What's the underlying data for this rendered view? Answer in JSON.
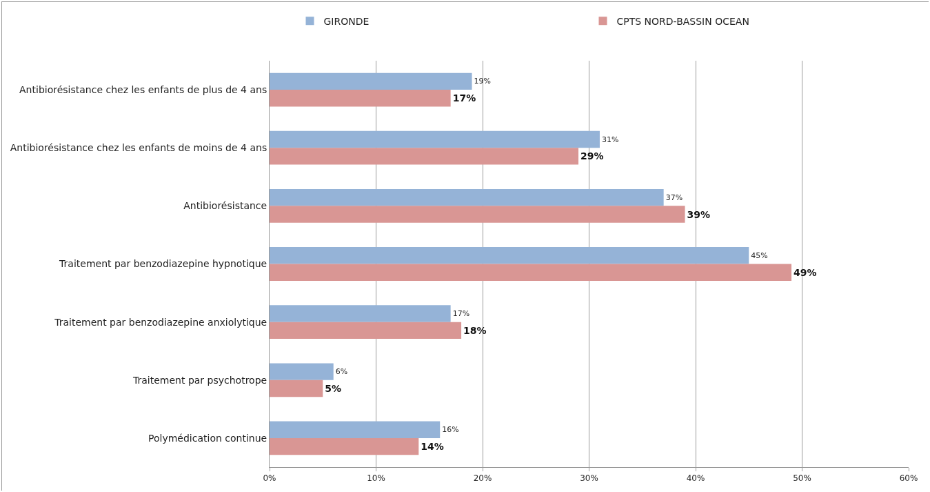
{
  "chart_data": {
    "type": "bar",
    "orientation": "horizontal",
    "categories": [
      "Antibiorésistance chez les enfants de plus de 4 ans",
      "Antibiorésistance chez les enfants de moins de 4 ans",
      "Antibiorésistance",
      "Traitement par benzodiazepine hypnotique",
      "Traitement par benzodiazepine anxiolytique",
      "Traitement par psychotrope",
      "Polymédication continue"
    ],
    "series": [
      {
        "name": "GIRONDE",
        "color": "#95b3d7",
        "values": [
          19,
          31,
          37,
          45,
          17,
          6,
          16
        ],
        "value_labels": [
          "19%",
          "31%",
          "37%",
          "45%",
          "17%",
          "6%",
          "16%"
        ]
      },
      {
        "name": "CPTS NORD-BASSIN OCEAN",
        "color": "#d99694",
        "values": [
          17,
          29,
          39,
          49,
          18,
          5,
          14
        ],
        "value_labels": [
          "17%",
          "29%",
          "39%",
          "49%",
          "18%",
          "5%",
          "14%"
        ]
      }
    ],
    "xlim": [
      0,
      60
    ],
    "xticks": [
      {
        "value": 0,
        "label": "0%"
      },
      {
        "value": 10,
        "label": "10%"
      },
      {
        "value": 20,
        "label": "20%"
      },
      {
        "value": 30,
        "label": "30%"
      },
      {
        "value": 40,
        "label": "40%"
      },
      {
        "value": 50,
        "label": "50%"
      },
      {
        "value": 60,
        "label": "60%"
      }
    ],
    "grid": "x",
    "legend": "top"
  }
}
